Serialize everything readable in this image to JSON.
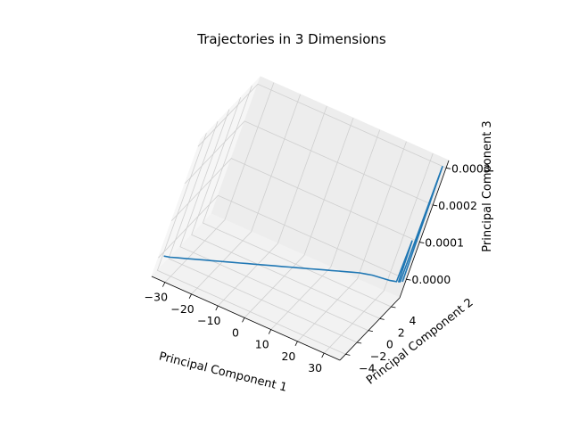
{
  "chart_data": {
    "type": "line",
    "projection": "3d",
    "title": "Trajectories in 3 Dimensions",
    "xlabel": "Principal Component 1",
    "ylabel": "Principal Component 2",
    "zlabel": "Principal Component 3",
    "xlim": [
      -35,
      36
    ],
    "ylim": [
      -5,
      5.5
    ],
    "zlim": [
      -5e-05,
      0.00032
    ],
    "x_ticks": [
      {
        "value": -30,
        "label": "−30"
      },
      {
        "value": -20,
        "label": "−20"
      },
      {
        "value": -10,
        "label": "−10"
      },
      {
        "value": 0,
        "label": "0"
      },
      {
        "value": 10,
        "label": "10"
      },
      {
        "value": 20,
        "label": "20"
      },
      {
        "value": 30,
        "label": "30"
      }
    ],
    "y_ticks": [
      {
        "value": -4,
        "label": "−4"
      },
      {
        "value": -2,
        "label": "−2"
      },
      {
        "value": 0,
        "label": "0"
      },
      {
        "value": 2,
        "label": "2"
      },
      {
        "value": 4,
        "label": "4"
      }
    ],
    "z_ticks": [
      {
        "value": 0.0,
        "label": "0.0000"
      },
      {
        "value": 0.0001,
        "label": "0.0001"
      },
      {
        "value": 0.0002,
        "label": "0.0002"
      },
      {
        "value": 0.0003,
        "label": "0.0003"
      }
    ],
    "grid": true,
    "series": [
      {
        "color": "#1f77b4",
        "points": [
          [
            -34,
            -4.5,
            0.0
          ],
          [
            -32,
            -4.3,
            0.0
          ],
          [
            -30,
            -4.0,
            0.0
          ],
          [
            -28,
            -3.7,
            0.0
          ],
          [
            -26,
            -3.4,
            0.0
          ],
          [
            -24,
            -3.1,
            0.0
          ],
          [
            -22,
            -2.8,
            0.0
          ],
          [
            -20,
            -2.5,
            0.0
          ],
          [
            -18,
            -2.2,
            0.0
          ],
          [
            -16,
            -1.9,
            0.0
          ],
          [
            -14,
            -1.6,
            0.0
          ],
          [
            -12,
            -1.3,
            0.0
          ],
          [
            -10,
            -1.0,
            0.0
          ],
          [
            -8,
            -0.7,
            0.0
          ],
          [
            -6,
            -0.4,
            0.0
          ],
          [
            -4,
            -0.1,
            0.0
          ],
          [
            -2,
            0.2,
            0.0
          ],
          [
            0,
            0.5,
            0.0
          ],
          [
            2,
            0.8,
            0.0
          ],
          [
            4,
            1.1,
            0.0
          ],
          [
            6,
            1.4,
            0.0
          ],
          [
            8,
            1.7,
            0.0
          ],
          [
            10,
            2.0,
            0.0
          ],
          [
            12,
            2.3,
            0.0
          ],
          [
            14,
            2.6,
            0.0
          ],
          [
            16,
            2.9,
            0.0
          ],
          [
            18,
            3.2,
            0.0
          ],
          [
            20,
            3.5,
            0.0
          ],
          [
            22,
            3.8,
            0.0
          ],
          [
            24,
            4.0,
            0.0
          ],
          [
            26,
            4.2,
            0.0
          ],
          [
            28,
            4.3,
            0.0
          ],
          [
            30,
            4.4,
            0.0
          ],
          [
            32,
            4.5,
            0.0
          ],
          [
            33,
            4.6,
            0.0
          ],
          [
            34,
            4.7,
            0.0
          ],
          [
            34.3,
            4.75,
            0.00011
          ],
          [
            34.6,
            4.8,
            0.0
          ],
          [
            35,
            4.9,
            0.0
          ],
          [
            35.3,
            4.95,
            0.00031
          ],
          [
            35.6,
            5.0,
            0.0
          ]
        ]
      }
    ]
  }
}
